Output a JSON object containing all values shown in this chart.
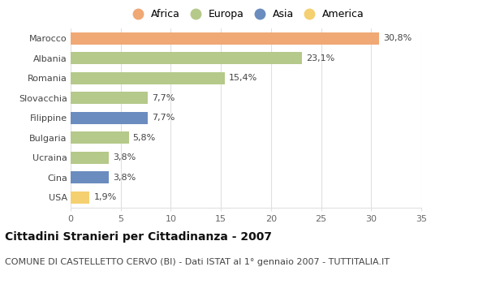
{
  "categories": [
    "Marocco",
    "Albania",
    "Romania",
    "Slovacchia",
    "Filippine",
    "Bulgaria",
    "Ucraina",
    "Cina",
    "USA"
  ],
  "values": [
    30.8,
    23.1,
    15.4,
    7.7,
    7.7,
    5.8,
    3.8,
    3.8,
    1.9
  ],
  "labels": [
    "30,8%",
    "23,1%",
    "15,4%",
    "7,7%",
    "7,7%",
    "5,8%",
    "3,8%",
    "3,8%",
    "1,9%"
  ],
  "continents": [
    "Africa",
    "Europa",
    "Europa",
    "Europa",
    "Asia",
    "Europa",
    "Europa",
    "Asia",
    "America"
  ],
  "bar_colors": [
    "#F0A875",
    "#B5C98A",
    "#B5C98A",
    "#B5C98A",
    "#6B8CBF",
    "#B5C98A",
    "#B5C98A",
    "#6B8CBF",
    "#F5D070"
  ],
  "xlim": [
    0,
    35
  ],
  "xticks": [
    0,
    5,
    10,
    15,
    20,
    25,
    30,
    35
  ],
  "title": "Cittadini Stranieri per Cittadinanza - 2007",
  "subtitle": "COMUNE DI CASTELLETTO CERVO (BI) - Dati ISTAT al 1° gennaio 2007 - TUTTITALIA.IT",
  "legend_labels": [
    "Africa",
    "Europa",
    "Asia",
    "America"
  ],
  "legend_colors": [
    "#F0A875",
    "#B5C98A",
    "#6B8CBF",
    "#F5D070"
  ],
  "background_color": "#ffffff",
  "grid_color": "#e0e0e0",
  "title_fontsize": 10,
  "subtitle_fontsize": 8,
  "label_fontsize": 8,
  "tick_fontsize": 8,
  "legend_fontsize": 9
}
